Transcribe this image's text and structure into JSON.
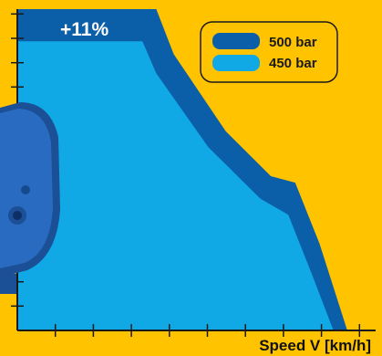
{
  "chart_data": {
    "type": "area",
    "title": "",
    "xlabel": "Speed V [km/h]",
    "ylabel": "",
    "x_ticks": 9,
    "y_ticks": 13,
    "series": [
      {
        "name": "500 bar",
        "color": "#0b5ea8",
        "points": [
          [
            0,
            1.0
          ],
          [
            0.4,
            1.0
          ],
          [
            0.45,
            0.86
          ],
          [
            0.6,
            0.62
          ],
          [
            0.73,
            0.48
          ],
          [
            0.8,
            0.46
          ],
          [
            0.87,
            0.27
          ],
          [
            0.95,
            0.0
          ]
        ]
      },
      {
        "name": "450 bar",
        "color": "#10a9e6",
        "points": [
          [
            0,
            0.9
          ],
          [
            0.36,
            0.9
          ],
          [
            0.4,
            0.8
          ],
          [
            0.55,
            0.57
          ],
          [
            0.7,
            0.41
          ],
          [
            0.78,
            0.36
          ],
          [
            0.85,
            0.17
          ],
          [
            0.91,
            0.0
          ]
        ]
      }
    ],
    "annotation": "+11%"
  },
  "legend": [
    {
      "label": "500 bar",
      "color": "#0b5ea8"
    },
    {
      "label": "450 bar",
      "color": "#10a9e6"
    }
  ],
  "colors": {
    "background": "#ffc300",
    "axis": "#1a1a1a",
    "pump_body": "#2a6bc2",
    "pump_dark": "#1b4f96"
  }
}
